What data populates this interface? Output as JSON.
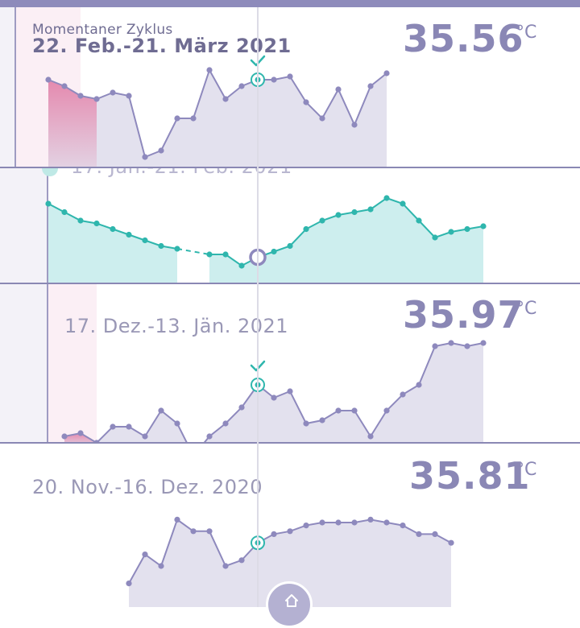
{
  "colors": {
    "accent": "#8a87b5",
    "teal": "#2fb6ad",
    "period_pink": "#e47aa3",
    "line_purple": "#8e89bd",
    "fill_purple": "#e3e1ee"
  },
  "cycles": [
    {
      "id": "current",
      "caption": "Momentaner Zyklus",
      "date_range": "22. Feb.-21. März 2021",
      "temperature": "35.56",
      "unit": "°C",
      "ovulation_marker": "checkmark-icon",
      "chart_data": {
        "type": "area",
        "values": [
          36.7,
          36.6,
          36.45,
          36.4,
          36.5,
          36.45,
          35.5,
          35.6,
          36.1,
          36.1,
          36.85,
          36.4,
          36.6,
          36.7,
          36.7,
          36.75,
          36.35,
          36.1,
          36.55,
          36.0,
          36.6,
          36.8
        ]
      }
    },
    {
      "id": "previous",
      "caption": "",
      "date_range": "17. Jan.-21. Feb. 2021",
      "temperature": "",
      "unit": "",
      "ovulation_marker": "",
      "chart_data": {
        "type": "area",
        "values": [
          36.9,
          36.75,
          36.6,
          36.55,
          36.45,
          36.35,
          36.25,
          36.15,
          36.1,
          null,
          36.0,
          36.0,
          35.8,
          35.95,
          36.05,
          36.15,
          36.45,
          36.6,
          36.7,
          36.75,
          36.8,
          37.0,
          36.9,
          36.6,
          36.3,
          36.4,
          36.45,
          36.5
        ]
      }
    },
    {
      "id": "dez-jan",
      "caption": "",
      "date_range": "17. Dez.-13. Jän. 2021",
      "temperature": "35.97",
      "unit": "°C",
      "ovulation_marker": "checkmark-icon",
      "chart_data": {
        "type": "area",
        "values": [
          35.3,
          35.35,
          35.2,
          35.45,
          35.45,
          35.3,
          35.7,
          35.5,
          35.0,
          35.3,
          35.5,
          35.75,
          36.1,
          35.9,
          36.0,
          35.5,
          35.55,
          35.7,
          35.7,
          35.3,
          35.7,
          35.95,
          36.1,
          36.7,
          36.75,
          36.7,
          36.75
        ]
      }
    },
    {
      "id": "nov-dez",
      "caption": "",
      "date_range": "20. Nov.-16. Dez. 2020",
      "temperature": "35.81",
      "unit": "°C",
      "ovulation_marker": "",
      "chart_data": {
        "type": "area",
        "values": [
          35.2,
          35.7,
          35.5,
          36.3,
          36.1,
          36.1,
          35.5,
          35.6,
          35.9,
          36.05,
          36.1,
          36.2,
          36.25,
          36.25,
          36.25,
          36.3,
          36.25,
          36.2,
          36.05,
          36.05,
          35.9
        ]
      }
    }
  ],
  "bottom": {
    "home_icon": "home-icon"
  }
}
